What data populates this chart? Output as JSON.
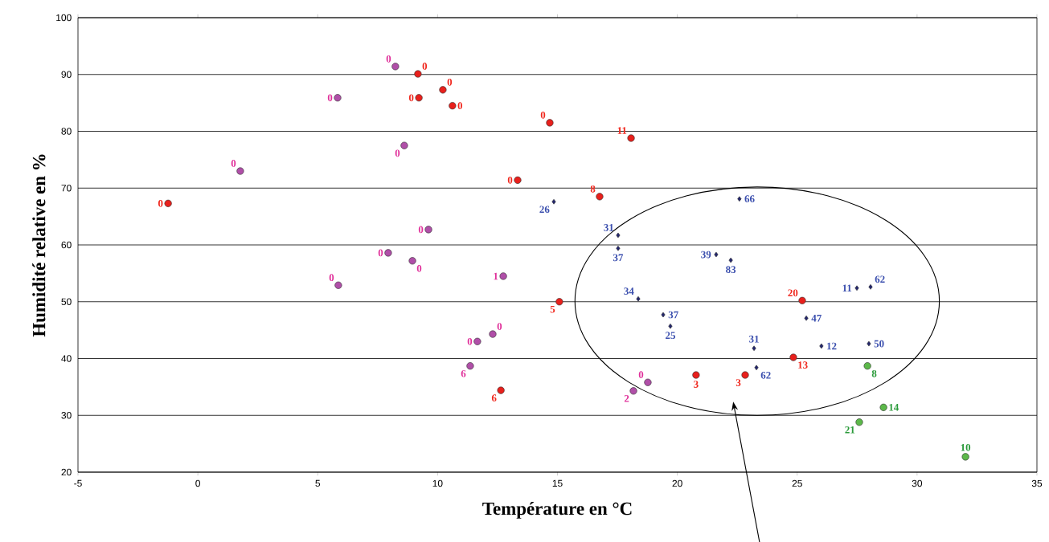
{
  "chart_data": {
    "type": "scatter",
    "xlabel": "Température en °C",
    "ylabel": "Humidité relative en %",
    "xlim": [
      -5,
      35
    ],
    "xticks": [
      -5,
      0,
      5,
      10,
      15,
      20,
      25,
      30,
      35
    ],
    "ylim": [
      20,
      100
    ],
    "yticks": [
      20,
      30,
      40,
      50,
      60,
      70,
      80,
      90,
      100
    ],
    "grid": "y",
    "series": [
      {
        "color": "#b04fa8",
        "marker": "circle",
        "x": [
          8.24,
          5.83,
          8.61,
          1.77,
          9.62,
          7.94,
          8.95,
          5.86,
          12.74,
          12.3,
          11.66,
          11.36,
          18.77,
          18.17
        ],
        "values": [
          91.4,
          85.9,
          77.5,
          73.0,
          62.7,
          58.6,
          57.2,
          52.9,
          54.5,
          44.3,
          43.0,
          38.7,
          35.8,
          34.3
        ]
      },
      {
        "color": "#e8201c",
        "marker": "circle",
        "x": [
          9.18,
          10.22,
          9.22,
          10.62,
          14.68,
          18.07,
          13.34,
          16.76,
          -1.24,
          15.08,
          25.21,
          24.84,
          20.78,
          22.83,
          12.64
        ],
        "values": [
          90.1,
          87.3,
          85.9,
          84.5,
          81.5,
          78.8,
          71.4,
          68.5,
          67.3,
          50.0,
          50.2,
          40.2,
          37.1,
          37.1,
          34.4
        ]
      },
      {
        "color": "#23266e",
        "marker": "diamond",
        "x": [
          14.85,
          22.59,
          17.53,
          17.53,
          21.62,
          22.23,
          18.37,
          19.41,
          19.71,
          23.2,
          25.38,
          27.49,
          28.06,
          26.01,
          27.99,
          23.3
        ],
        "values": [
          67.6,
          68.1,
          61.7,
          59.4,
          58.3,
          57.3,
          50.5,
          47.7,
          45.7,
          41.8,
          47.1,
          52.4,
          52.6,
          42.2,
          42.6,
          38.4
        ]
      },
      {
        "color": "#5cb84a",
        "marker": "circle",
        "x": [
          27.93,
          28.6,
          27.59,
          32.02
        ],
        "values": [
          38.7,
          31.4,
          28.8,
          22.7
        ]
      }
    ],
    "annotations": [
      {
        "text": "0",
        "x": 8.24,
        "y": 91.4
      },
      {
        "text": "0",
        "x": 5.83,
        "y": 85.9
      },
      {
        "text": "0",
        "x": 8.61,
        "y": 77.5
      },
      {
        "text": "0",
        "x": 1.77,
        "y": 73.0
      },
      {
        "text": "0",
        "x": 9.62,
        "y": 62.7
      },
      {
        "text": "0",
        "x": 7.94,
        "y": 58.6
      },
      {
        "text": "0",
        "x": 8.95,
        "y": 57.2
      },
      {
        "text": "0",
        "x": 5.86,
        "y": 52.9
      },
      {
        "text": "1",
        "x": 12.74,
        "y": 54.5
      },
      {
        "text": "0",
        "x": 12.3,
        "y": 44.3
      },
      {
        "text": "0",
        "x": 11.66,
        "y": 43.0
      },
      {
        "text": "6",
        "x": 11.36,
        "y": 38.7
      },
      {
        "text": "0",
        "x": 18.77,
        "y": 35.8
      },
      {
        "text": "2",
        "x": 18.17,
        "y": 34.3
      },
      {
        "text": "0",
        "x": 9.18,
        "y": 90.1
      },
      {
        "text": "0",
        "x": 10.22,
        "y": 87.3
      },
      {
        "text": "0",
        "x": 9.22,
        "y": 85.9
      },
      {
        "text": "0",
        "x": 10.62,
        "y": 84.5
      },
      {
        "text": "0",
        "x": 14.68,
        "y": 81.5
      },
      {
        "text": "11",
        "x": 18.07,
        "y": 78.8
      },
      {
        "text": "0",
        "x": 13.34,
        "y": 71.4
      },
      {
        "text": "8",
        "x": 16.76,
        "y": 68.5
      },
      {
        "text": "0",
        "x": -1.24,
        "y": 67.3
      },
      {
        "text": "5",
        "x": 15.08,
        "y": 50.0
      },
      {
        "text": "20",
        "x": 25.21,
        "y": 50.2
      },
      {
        "text": "13",
        "x": 24.84,
        "y": 40.2
      },
      {
        "text": "3",
        "x": 20.78,
        "y": 37.1
      },
      {
        "text": "3",
        "x": 22.83,
        "y": 37.1
      },
      {
        "text": "6",
        "x": 12.64,
        "y": 34.4
      },
      {
        "text": "26",
        "x": 14.85,
        "y": 67.6
      },
      {
        "text": "66",
        "x": 22.59,
        "y": 68.1
      },
      {
        "text": "31",
        "x": 17.53,
        "y": 61.7
      },
      {
        "text": "37",
        "x": 17.53,
        "y": 59.4
      },
      {
        "text": "39",
        "x": 21.62,
        "y": 58.3
      },
      {
        "text": "83",
        "x": 22.23,
        "y": 57.3
      },
      {
        "text": "34",
        "x": 18.37,
        "y": 50.5
      },
      {
        "text": "37",
        "x": 19.41,
        "y": 47.7
      },
      {
        "text": "25",
        "x": 19.71,
        "y": 45.7
      },
      {
        "text": "31",
        "x": 23.2,
        "y": 41.8
      },
      {
        "text": "47",
        "x": 25.38,
        "y": 47.1
      },
      {
        "text": "11",
        "x": 27.49,
        "y": 52.4
      },
      {
        "text": "62",
        "x": 28.06,
        "y": 52.6
      },
      {
        "text": "12",
        "x": 26.01,
        "y": 42.2
      },
      {
        "text": "50",
        "x": 27.99,
        "y": 42.6
      },
      {
        "text": "62",
        "x": 23.3,
        "y": 38.4
      },
      {
        "text": "8",
        "x": 27.93,
        "y": 38.7
      },
      {
        "text": "14",
        "x": 28.6,
        "y": 31.4
      },
      {
        "text": "21",
        "x": 27.59,
        "y": 28.8
      },
      {
        "text": "10",
        "x": 32.02,
        "y": 22.7
      }
    ]
  }
}
